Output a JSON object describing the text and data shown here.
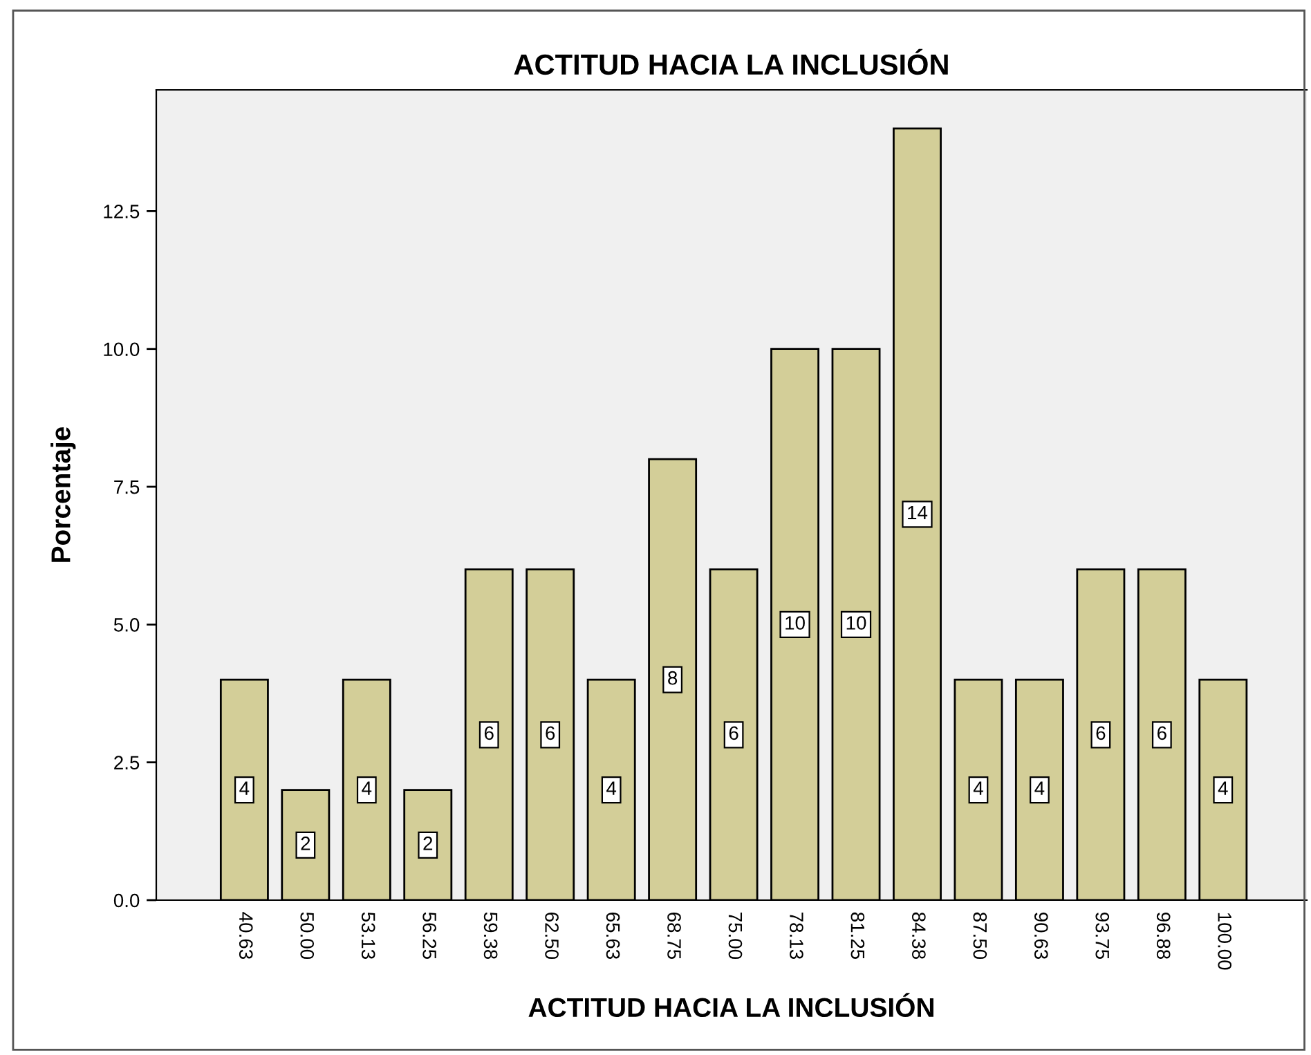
{
  "chart_data": {
    "type": "bar",
    "title": "ACTITUD HACIA LA INCLUSIÓN",
    "xlabel": "ACTITUD HACIA LA INCLUSIÓN",
    "ylabel": "Porcentaje",
    "categories": [
      "40.63",
      "50.00",
      "53.13",
      "56.25",
      "59.38",
      "62.50",
      "65.63",
      "68.75",
      "75.00",
      "78.13",
      "81.25",
      "84.38",
      "87.50",
      "90.63",
      "93.75",
      "96.88",
      "100.00"
    ],
    "values": [
      4,
      2,
      4,
      2,
      6,
      6,
      4,
      8,
      6,
      10,
      10,
      14,
      4,
      4,
      6,
      6,
      4
    ],
    "color": "#d3ce98",
    "ylim": [
      0,
      14.7
    ],
    "yticks": [
      {
        "value": 0,
        "label": "0.0"
      },
      {
        "value": 2.5,
        "label": "2.5"
      },
      {
        "value": 5,
        "label": "5.0"
      },
      {
        "value": 7.5,
        "label": "7.5"
      },
      {
        "value": 10,
        "label": "10.0"
      },
      {
        "value": 12.5,
        "label": "12.5"
      }
    ],
    "data_labels": true
  }
}
